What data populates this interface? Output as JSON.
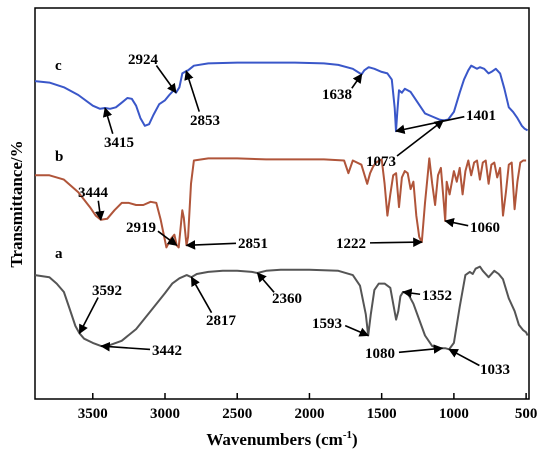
{
  "chart_data": {
    "type": "line",
    "xlabel": "Wavenumbers (cm",
    "xlabel_sup": "-1",
    "xlabel_tail": ")",
    "ylabel": "Transmittance/%",
    "xlim": [
      3900,
      480
    ],
    "x_reversed": true,
    "xticks": [
      3500,
      3000,
      2500,
      2000,
      1500,
      1000,
      500
    ],
    "y_ticks_shown": false,
    "grid": false,
    "legend": "none",
    "series": [
      {
        "name": "a",
        "color": "#555555",
        "points": [
          [
            3900,
            0.82
          ],
          [
            3800,
            0.8
          ],
          [
            3750,
            0.74
          ],
          [
            3700,
            0.66
          ],
          [
            3660,
            0.5
          ],
          [
            3620,
            0.34
          ],
          [
            3592,
            0.27
          ],
          [
            3560,
            0.22
          ],
          [
            3500,
            0.18
          ],
          [
            3442,
            0.15
          ],
          [
            3400,
            0.15
          ],
          [
            3300,
            0.2
          ],
          [
            3200,
            0.31
          ],
          [
            3100,
            0.48
          ],
          [
            3000,
            0.65
          ],
          [
            2950,
            0.74
          ],
          [
            2900,
            0.79
          ],
          [
            2850,
            0.82
          ],
          [
            2817,
            0.8
          ],
          [
            2780,
            0.83
          ],
          [
            2700,
            0.85
          ],
          [
            2600,
            0.86
          ],
          [
            2500,
            0.86
          ],
          [
            2400,
            0.85
          ],
          [
            2360,
            0.84
          ],
          [
            2300,
            0.86
          ],
          [
            2200,
            0.87
          ],
          [
            2000,
            0.87
          ],
          [
            1800,
            0.86
          ],
          [
            1700,
            0.82
          ],
          [
            1650,
            0.72
          ],
          [
            1610,
            0.45
          ],
          [
            1593,
            0.25
          ],
          [
            1575,
            0.45
          ],
          [
            1550,
            0.68
          ],
          [
            1520,
            0.74
          ],
          [
            1480,
            0.74
          ],
          [
            1440,
            0.7
          ],
          [
            1400,
            0.4
          ],
          [
            1385,
            0.48
          ],
          [
            1370,
            0.62
          ],
          [
            1352,
            0.66
          ],
          [
            1320,
            0.65
          ],
          [
            1280,
            0.55
          ],
          [
            1240,
            0.4
          ],
          [
            1200,
            0.25
          ],
          [
            1150,
            0.15
          ],
          [
            1100,
            0.13
          ],
          [
            1080,
            0.13
          ],
          [
            1060,
            0.13
          ],
          [
            1033,
            0.12
          ],
          [
            1000,
            0.18
          ],
          [
            960,
            0.52
          ],
          [
            920,
            0.82
          ],
          [
            890,
            0.85
          ],
          [
            870,
            0.83
          ],
          [
            850,
            0.88
          ],
          [
            820,
            0.9
          ],
          [
            800,
            0.86
          ],
          [
            760,
            0.8
          ],
          [
            720,
            0.86
          ],
          [
            690,
            0.83
          ],
          [
            660,
            0.78
          ],
          [
            620,
            0.6
          ],
          [
            580,
            0.48
          ],
          [
            550,
            0.35
          ],
          [
            520,
            0.3
          ],
          [
            500,
            0.28
          ],
          [
            490,
            0.25
          ]
        ]
      },
      {
        "name": "b",
        "color": "#b0553a",
        "points": [
          [
            3900,
            0.78
          ],
          [
            3800,
            0.78
          ],
          [
            3700,
            0.74
          ],
          [
            3600,
            0.62
          ],
          [
            3520,
            0.48
          ],
          [
            3480,
            0.4
          ],
          [
            3444,
            0.36
          ],
          [
            3400,
            0.37
          ],
          [
            3350,
            0.45
          ],
          [
            3300,
            0.52
          ],
          [
            3250,
            0.52
          ],
          [
            3200,
            0.5
          ],
          [
            3150,
            0.5
          ],
          [
            3100,
            0.53
          ],
          [
            3060,
            0.52
          ],
          [
            3030,
            0.36
          ],
          [
            2990,
            0.1
          ],
          [
            2960,
            0.18
          ],
          [
            2935,
            0.22
          ],
          [
            2919,
            0.12
          ],
          [
            2905,
            0.1
          ],
          [
            2880,
            0.45
          ],
          [
            2870,
            0.38
          ],
          [
            2851,
            0.12
          ],
          [
            2840,
            0.2
          ],
          [
            2820,
            0.7
          ],
          [
            2800,
            0.92
          ],
          [
            2700,
            0.94
          ],
          [
            2500,
            0.94
          ],
          [
            2300,
            0.93
          ],
          [
            2100,
            0.93
          ],
          [
            1900,
            0.93
          ],
          [
            1760,
            0.92
          ],
          [
            1730,
            0.8
          ],
          [
            1700,
            0.92
          ],
          [
            1640,
            0.88
          ],
          [
            1600,
            0.7
          ],
          [
            1580,
            0.8
          ],
          [
            1560,
            0.86
          ],
          [
            1540,
            0.9
          ],
          [
            1500,
            0.93
          ],
          [
            1480,
            0.7
          ],
          [
            1460,
            0.4
          ],
          [
            1440,
            0.6
          ],
          [
            1420,
            0.78
          ],
          [
            1400,
            0.8
          ],
          [
            1380,
            0.48
          ],
          [
            1360,
            0.76
          ],
          [
            1340,
            0.82
          ],
          [
            1320,
            0.8
          ],
          [
            1300,
            0.65
          ],
          [
            1280,
            0.72
          ],
          [
            1260,
            0.4
          ],
          [
            1240,
            0.2
          ],
          [
            1222,
            0.15
          ],
          [
            1200,
            0.52
          ],
          [
            1180,
            0.8
          ],
          [
            1170,
            0.94
          ],
          [
            1150,
            0.7
          ],
          [
            1130,
            0.5
          ],
          [
            1110,
            0.78
          ],
          [
            1090,
            0.85
          ],
          [
            1070,
            0.52
          ],
          [
            1060,
            0.35
          ],
          [
            1050,
            0.72
          ],
          [
            1030,
            0.6
          ],
          [
            1000,
            0.82
          ],
          [
            980,
            0.72
          ],
          [
            960,
            0.85
          ],
          [
            940,
            0.6
          ],
          [
            920,
            0.82
          ],
          [
            900,
            0.92
          ],
          [
            880,
            0.78
          ],
          [
            860,
            0.9
          ],
          [
            840,
            0.92
          ],
          [
            820,
            0.74
          ],
          [
            800,
            0.9
          ],
          [
            780,
            0.92
          ],
          [
            760,
            0.7
          ],
          [
            740,
            0.88
          ],
          [
            720,
            0.9
          ],
          [
            700,
            0.76
          ],
          [
            680,
            0.85
          ],
          [
            660,
            0.4
          ],
          [
            640,
            0.62
          ],
          [
            620,
            0.88
          ],
          [
            600,
            0.9
          ],
          [
            580,
            0.46
          ],
          [
            560,
            0.72
          ],
          [
            540,
            0.9
          ],
          [
            520,
            0.92
          ],
          [
            500,
            0.92
          ]
        ]
      },
      {
        "name": "c",
        "color": "#3a57c9",
        "points": [
          [
            3900,
            0.7
          ],
          [
            3800,
            0.68
          ],
          [
            3700,
            0.62
          ],
          [
            3600,
            0.52
          ],
          [
            3500,
            0.38
          ],
          [
            3450,
            0.34
          ],
          [
            3415,
            0.35
          ],
          [
            3380,
            0.34
          ],
          [
            3340,
            0.36
          ],
          [
            3300,
            0.42
          ],
          [
            3260,
            0.48
          ],
          [
            3230,
            0.47
          ],
          [
            3200,
            0.38
          ],
          [
            3170,
            0.22
          ],
          [
            3140,
            0.12
          ],
          [
            3110,
            0.14
          ],
          [
            3080,
            0.26
          ],
          [
            3040,
            0.4
          ],
          [
            3000,
            0.45
          ],
          [
            2970,
            0.52
          ],
          [
            2940,
            0.58
          ],
          [
            2924,
            0.55
          ],
          [
            2900,
            0.62
          ],
          [
            2880,
            0.8
          ],
          [
            2853,
            0.83
          ],
          [
            2840,
            0.84
          ],
          [
            2800,
            0.9
          ],
          [
            2700,
            0.93
          ],
          [
            2500,
            0.94
          ],
          [
            2300,
            0.94
          ],
          [
            2100,
            0.94
          ],
          [
            1900,
            0.93
          ],
          [
            1800,
            0.91
          ],
          [
            1700,
            0.86
          ],
          [
            1650,
            0.8
          ],
          [
            1638,
            0.79
          ],
          [
            1620,
            0.84
          ],
          [
            1590,
            0.88
          ],
          [
            1550,
            0.86
          ],
          [
            1500,
            0.82
          ],
          [
            1460,
            0.8
          ],
          [
            1430,
            0.72
          ],
          [
            1410,
            0.35
          ],
          [
            1401,
            0.05
          ],
          [
            1392,
            0.3
          ],
          [
            1380,
            0.58
          ],
          [
            1360,
            0.55
          ],
          [
            1340,
            0.6
          ],
          [
            1300,
            0.56
          ],
          [
            1250,
            0.42
          ],
          [
            1200,
            0.28
          ],
          [
            1150,
            0.24
          ],
          [
            1100,
            0.2
          ],
          [
            1073,
            0.19
          ],
          [
            1040,
            0.2
          ],
          [
            1000,
            0.3
          ],
          [
            960,
            0.55
          ],
          [
            930,
            0.72
          ],
          [
            900,
            0.84
          ],
          [
            880,
            0.9
          ],
          [
            860,
            0.88
          ],
          [
            840,
            0.86
          ],
          [
            820,
            0.88
          ],
          [
            790,
            0.86
          ],
          [
            760,
            0.8
          ],
          [
            740,
            0.82
          ],
          [
            710,
            0.86
          ],
          [
            680,
            0.8
          ],
          [
            650,
            0.6
          ],
          [
            620,
            0.36
          ],
          [
            590,
            0.3
          ],
          [
            560,
            0.22
          ],
          [
            530,
            0.12
          ],
          [
            510,
            0.08
          ],
          [
            490,
            0.06
          ]
        ]
      }
    ],
    "annotations": [
      {
        "text": "3592",
        "series": "a",
        "x": 3592
      },
      {
        "text": "3442",
        "series": "a",
        "x": 3442
      },
      {
        "text": "2817",
        "series": "a",
        "x": 2817
      },
      {
        "text": "2360",
        "series": "a",
        "x": 2360
      },
      {
        "text": "1593",
        "series": "a",
        "x": 1593
      },
      {
        "text": "1352",
        "series": "a",
        "x": 1352
      },
      {
        "text": "1080",
        "series": "a",
        "x": 1080
      },
      {
        "text": "1033",
        "series": "a",
        "x": 1033
      },
      {
        "text": "3444",
        "series": "b",
        "x": 3444
      },
      {
        "text": "2919",
        "series": "b",
        "x": 2919
      },
      {
        "text": "2851",
        "series": "b",
        "x": 2851
      },
      {
        "text": "1222",
        "series": "b",
        "x": 1222
      },
      {
        "text": "1060",
        "series": "b",
        "x": 1060
      },
      {
        "text": "2924",
        "series": "c",
        "x": 2924
      },
      {
        "text": "2853",
        "series": "c",
        "x": 2853
      },
      {
        "text": "3415",
        "series": "c",
        "x": 3415
      },
      {
        "text": "1638",
        "series": "c",
        "x": 1638
      },
      {
        "text": "1401",
        "series": "c",
        "x": 1401
      },
      {
        "text": "1073",
        "series": "c",
        "x": 1073
      }
    ]
  }
}
